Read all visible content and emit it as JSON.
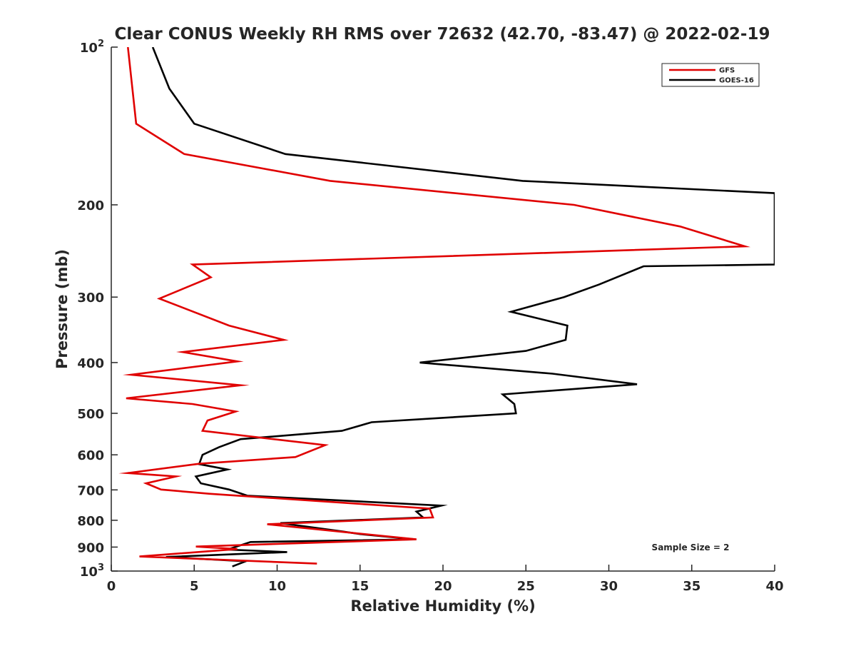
{
  "chart_data": {
    "type": "line",
    "title": "Clear CONUS Weekly RH RMS over 72632 (42.70, -83.47) @ 2022-02-19",
    "xlabel": "Relative Humidity (%)",
    "ylabel": "Pressure (mb)",
    "xlim": [
      0,
      40
    ],
    "ylim": [
      100,
      1000
    ],
    "y_scale": "log",
    "y_reversed": true,
    "x_ticks": [
      "0",
      "5",
      "10",
      "15",
      "20",
      "25",
      "30",
      "35",
      "40"
    ],
    "y_ticks": [
      {
        "value": 100,
        "label": "10",
        "sup": "2"
      },
      {
        "value": 200,
        "label": "200",
        "sup": ""
      },
      {
        "value": 300,
        "label": "300",
        "sup": ""
      },
      {
        "value": 400,
        "label": "400",
        "sup": ""
      },
      {
        "value": 500,
        "label": "500",
        "sup": ""
      },
      {
        "value": 600,
        "label": "600",
        "sup": ""
      },
      {
        "value": 700,
        "label": "700",
        "sup": ""
      },
      {
        "value": 800,
        "label": "800",
        "sup": ""
      },
      {
        "value": 900,
        "label": "900",
        "sup": ""
      },
      {
        "value": 1000,
        "label": "10",
        "sup": "3"
      }
    ],
    "grid": false,
    "legend_position": "top-right",
    "annotation": "Sample Size = 2",
    "series": [
      {
        "name": "GFS",
        "color": "#e00000",
        "points": [
          [
            1.0,
            100
          ],
          [
            1.5,
            140
          ],
          [
            4.4,
            160
          ],
          [
            13.2,
            180
          ],
          [
            27.9,
            200
          ],
          [
            34.3,
            220
          ],
          [
            38.2,
            240
          ],
          [
            4.9,
            260
          ],
          [
            6.0,
            275
          ],
          [
            2.9,
            302
          ],
          [
            7.1,
            340
          ],
          [
            10.4,
            362
          ],
          [
            4.3,
            382
          ],
          [
            7.6,
            398
          ],
          [
            1.2,
            422
          ],
          [
            7.8,
            442
          ],
          [
            0.9,
            468
          ],
          [
            4.9,
            480
          ],
          [
            7.5,
            496
          ],
          [
            5.8,
            516
          ],
          [
            5.5,
            540
          ],
          [
            12.9,
            575
          ],
          [
            11.1,
            606
          ],
          [
            5.3,
            624
          ],
          [
            1.0,
            650
          ],
          [
            3.9,
            660
          ],
          [
            2.1,
            680
          ],
          [
            3.0,
            699
          ],
          [
            5.9,
            712
          ],
          [
            19.2,
            760
          ],
          [
            19.4,
            790
          ],
          [
            9.4,
            814
          ],
          [
            18.4,
            870
          ],
          [
            5.1,
            898
          ],
          [
            7.6,
            908
          ],
          [
            1.7,
            938
          ],
          [
            12.4,
            968
          ]
        ]
      },
      {
        "name": "GOES-16",
        "color": "#000000",
        "points": [
          [
            2.5,
            100
          ],
          [
            3.5,
            120
          ],
          [
            5.0,
            140
          ],
          [
            10.5,
            160
          ],
          [
            24.8,
            180
          ],
          [
            40.0,
            190
          ],
          [
            40.0,
            260
          ],
          [
            32.1,
            262
          ],
          [
            29.4,
            284
          ],
          [
            27.3,
            300
          ],
          [
            24.1,
            320
          ],
          [
            27.5,
            340
          ],
          [
            27.4,
            362
          ],
          [
            25.0,
            380
          ],
          [
            18.6,
            400
          ],
          [
            26.6,
            420
          ],
          [
            31.7,
            440
          ],
          [
            23.6,
            460
          ],
          [
            24.3,
            480
          ],
          [
            24.4,
            500
          ],
          [
            15.7,
            520
          ],
          [
            13.9,
            540
          ],
          [
            7.8,
            560
          ],
          [
            6.5,
            580
          ],
          [
            5.5,
            600
          ],
          [
            5.3,
            625
          ],
          [
            7.0,
            640
          ],
          [
            5.1,
            660
          ],
          [
            5.4,
            680
          ],
          [
            7.1,
            699
          ],
          [
            8.2,
            718
          ],
          [
            19.9,
            750
          ],
          [
            18.4,
            770
          ],
          [
            18.8,
            790
          ],
          [
            10.2,
            810
          ],
          [
            13.9,
            840
          ],
          [
            15.0,
            850
          ],
          [
            18.3,
            870
          ],
          [
            8.4,
            880
          ],
          [
            7.0,
            910
          ],
          [
            10.6,
            920
          ],
          [
            3.3,
            940
          ],
          [
            8.1,
            958
          ],
          [
            7.3,
            980
          ]
        ]
      }
    ]
  }
}
